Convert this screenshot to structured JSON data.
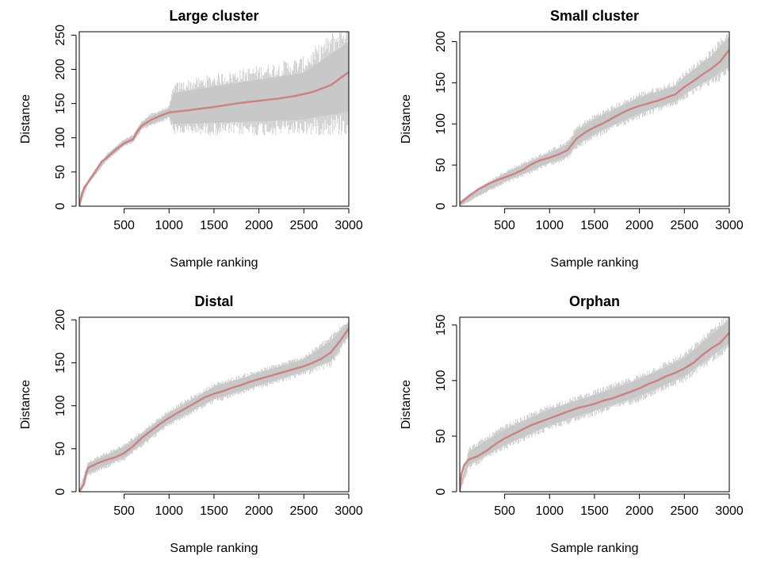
{
  "chart_data": [
    {
      "type": "line",
      "title": "Large cluster",
      "xlabel": "Sample ranking",
      "ylabel": "Distance",
      "xlim": [
        1,
        3000
      ],
      "ylim": [
        0,
        255
      ],
      "xticks": [
        500,
        1000,
        1500,
        2000,
        2500,
        3000
      ],
      "yticks": [
        0,
        50,
        100,
        150,
        200,
        250
      ],
      "grid": false,
      "series": [
        {
          "color": "#c98585",
          "x": [
            1,
            30,
            60,
            100,
            150,
            200,
            250,
            300,
            400,
            500,
            600,
            650,
            700,
            800,
            900,
            1000,
            1200,
            1500,
            1800,
            2000,
            2200,
            2400,
            2600,
            2800,
            3000
          ],
          "y": [
            0,
            18,
            28,
            35,
            45,
            55,
            65,
            70,
            82,
            92,
            98,
            110,
            118,
            126,
            132,
            137,
            140,
            145,
            151,
            154,
            157,
            161,
            167,
            177,
            196
          ]
        }
      ],
      "band": {
        "color": "#bdbdbd",
        "x": [
          1,
          100,
          300,
          500,
          600,
          700,
          800,
          1000,
          1050,
          1500,
          2000,
          2500,
          3000
        ],
        "lower": [
          0,
          33,
          67,
          89,
          95,
          114,
          120,
          131,
          120,
          122,
          124,
          127,
          138
        ],
        "upper": [
          2,
          38,
          74,
          96,
          103,
          123,
          132,
          143,
          165,
          175,
          185,
          195,
          240
        ]
      }
    },
    {
      "type": "line",
      "title": "Small cluster",
      "xlabel": "Sample ranking",
      "ylabel": "Distance",
      "xlim": [
        1,
        3000
      ],
      "ylim": [
        0,
        212
      ],
      "xticks": [
        500,
        1000,
        1500,
        2000,
        2500,
        3000
      ],
      "yticks": [
        0,
        50,
        100,
        150,
        200
      ],
      "grid": false,
      "series": [
        {
          "color": "#c98585",
          "x": [
            1,
            100,
            200,
            300,
            400,
            500,
            600,
            700,
            800,
            900,
            1000,
            1100,
            1200,
            1300,
            1400,
            1500,
            1600,
            1700,
            1800,
            1900,
            2000,
            2100,
            2200,
            2300,
            2400,
            2500,
            2600,
            2700,
            2800,
            2900,
            3000
          ],
          "y": [
            3,
            12,
            20,
            26,
            31,
            35,
            39,
            44,
            51,
            56,
            59,
            63,
            68,
            82,
            90,
            96,
            101,
            107,
            113,
            118,
            122,
            125,
            128,
            132,
            136,
            145,
            152,
            160,
            167,
            176,
            190
          ]
        }
      ],
      "band": {
        "color": "#bdbdbd",
        "x": [
          1,
          500,
          1000,
          1200,
          1300,
          1500,
          2000,
          2400,
          2500,
          2800,
          3000
        ],
        "lower": [
          1,
          30,
          53,
          61,
          74,
          88,
          113,
          128,
          136,
          156,
          170
        ],
        "upper": [
          6,
          40,
          65,
          75,
          92,
          106,
          132,
          146,
          157,
          182,
          205
        ]
      }
    },
    {
      "type": "line",
      "title": "Distal",
      "xlabel": "Sample ranking",
      "ylabel": "Distance",
      "xlim": [
        1,
        3000
      ],
      "ylim": [
        0,
        203
      ],
      "xticks": [
        500,
        1000,
        1500,
        2000,
        2500,
        3000
      ],
      "yticks": [
        0,
        50,
        100,
        150,
        200
      ],
      "grid": false,
      "series": [
        {
          "color": "#c98585",
          "x": [
            1,
            50,
            80,
            100,
            200,
            300,
            400,
            500,
            600,
            700,
            800,
            900,
            1000,
            1100,
            1200,
            1300,
            1400,
            1500,
            1600,
            1700,
            1800,
            1900,
            2000,
            2100,
            2200,
            2300,
            2400,
            2500,
            2600,
            2700,
            2800,
            2900,
            3000
          ],
          "y": [
            0,
            8,
            22,
            28,
            33,
            37,
            40,
            45,
            53,
            63,
            71,
            79,
            86,
            92,
            98,
            104,
            110,
            114,
            117,
            121,
            124,
            128,
            131,
            134,
            137,
            140,
            143,
            146,
            150,
            155,
            162,
            175,
            190
          ]
        }
      ],
      "band": {
        "color": "#bdbdbd",
        "x": [
          1,
          100,
          500,
          1000,
          1500,
          2000,
          2500,
          2800,
          3000
        ],
        "lower": [
          0,
          22,
          40,
          80,
          108,
          124,
          140,
          152,
          183
        ],
        "upper": [
          2,
          33,
          52,
          92,
          122,
          138,
          154,
          175,
          197
        ]
      }
    },
    {
      "type": "line",
      "title": "Orphan",
      "xlabel": "Sample ranking",
      "ylabel": "Distance",
      "xlim": [
        1,
        3000
      ],
      "ylim": [
        0,
        157
      ],
      "xticks": [
        500,
        1000,
        1500,
        2000,
        2500,
        3000
      ],
      "yticks": [
        0,
        50,
        100,
        150
      ],
      "grid": false,
      "series": [
        {
          "color": "#c98585",
          "x": [
            1,
            20,
            50,
            100,
            200,
            300,
            400,
            500,
            600,
            700,
            800,
            900,
            1000,
            1100,
            1200,
            1300,
            1400,
            1500,
            1600,
            1700,
            1800,
            1900,
            2000,
            2100,
            2200,
            2300,
            2400,
            2500,
            2600,
            2700,
            2800,
            2900,
            3000
          ],
          "y": [
            0,
            16,
            24,
            29,
            32,
            37,
            43,
            48,
            52,
            56,
            60,
            63,
            66,
            69,
            72,
            75,
            77,
            79,
            82,
            84,
            87,
            90,
            93,
            97,
            100,
            104,
            107,
            111,
            116,
            123,
            129,
            134,
            143
          ]
        }
      ],
      "band": {
        "color": "#bdbdbd",
        "x": [
          1,
          100,
          500,
          1000,
          1500,
          2000,
          2500,
          3000
        ],
        "lower": [
          0,
          24,
          42,
          60,
          73,
          86,
          104,
          134
        ],
        "upper": [
          2,
          36,
          56,
          74,
          87,
          101,
          120,
          155
        ]
      }
    }
  ]
}
